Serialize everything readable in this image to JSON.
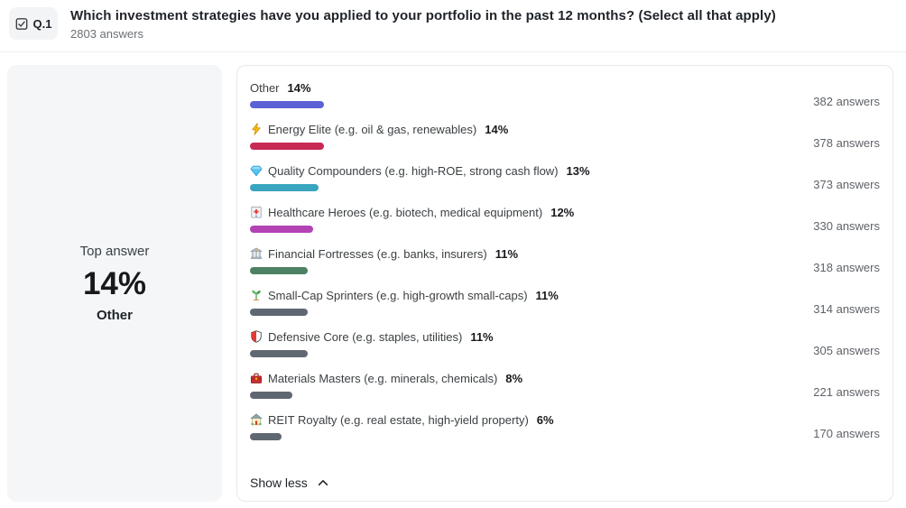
{
  "header": {
    "badge": {
      "icon": "checkbox-checked-icon",
      "label": "Q.1"
    },
    "title": "Which investment strategies have you applied to your portfolio in the past 12 months? (Select all that apply)",
    "subtitle": "2803 answers"
  },
  "summary": {
    "label": "Top answer",
    "value": "14%",
    "answer": "Other"
  },
  "results": {
    "rows": [
      {
        "icon": null,
        "label": "Other",
        "percent": "14%",
        "percent_value": 14,
        "count": "382 answers",
        "bar_color": "#5c61d6"
      },
      {
        "icon": "lightning-icon",
        "label": "Energy Elite (e.g. oil & gas, renewables)",
        "percent": "14%",
        "percent_value": 14,
        "count": "378 answers",
        "bar_color": "#c72a55"
      },
      {
        "icon": "gem-icon",
        "label": "Quality Compounders (e.g. high-ROE, strong cash flow)",
        "percent": "13%",
        "percent_value": 13,
        "count": "373 answers",
        "bar_color": "#39a5bf"
      },
      {
        "icon": "hospital-icon",
        "label": "Healthcare Heroes (e.g. biotech, medical equipment)",
        "percent": "12%",
        "percent_value": 12,
        "count": "330 answers",
        "bar_color": "#b343b5"
      },
      {
        "icon": "bank-icon",
        "label": "Financial Fortresses (e.g. banks, insurers)",
        "percent": "11%",
        "percent_value": 11,
        "count": "318 answers",
        "bar_color": "#4c8163"
      },
      {
        "icon": "seedling-icon",
        "label": "Small-Cap Sprinters (e.g. high-growth small-caps)",
        "percent": "11%",
        "percent_value": 11,
        "count": "314 answers",
        "bar_color": "#5f6772"
      },
      {
        "icon": "shield-icon",
        "label": "Defensive Core (e.g. staples, utilities)",
        "percent": "11%",
        "percent_value": 11,
        "count": "305 answers",
        "bar_color": "#5f6772"
      },
      {
        "icon": "toolbox-icon",
        "label": "Materials Masters (e.g. minerals, chemicals)",
        "percent": "8%",
        "percent_value": 8,
        "count": "221 answers",
        "bar_color": "#5f6772"
      },
      {
        "icon": "house-icon",
        "label": "REIT Royalty (e.g. real estate, high-yield property)",
        "percent": "6%",
        "percent_value": 6,
        "count": "170 answers",
        "bar_color": "#5f6772"
      }
    ],
    "show_less_label": "Show less",
    "show_less_icon": "chevron-up-icon"
  },
  "chart_data": {
    "type": "bar",
    "title": "Which investment strategies have you applied to your portfolio in the past 12 months? (Select all that apply)",
    "total_answers": 2803,
    "categories": [
      "Other",
      "Energy Elite (e.g. oil & gas, renewables)",
      "Quality Compounders (e.g. high-ROE, strong cash flow)",
      "Healthcare Heroes (e.g. biotech, medical equipment)",
      "Financial Fortresses (e.g. banks, insurers)",
      "Small-Cap Sprinters (e.g. high-growth small-caps)",
      "Defensive Core (e.g. staples, utilities)",
      "Materials Masters (e.g. minerals, chemicals)",
      "REIT Royalty (e.g. real estate, high-yield property)"
    ],
    "series": [
      {
        "name": "percent",
        "values": [
          14,
          14,
          13,
          12,
          11,
          11,
          11,
          8,
          6
        ]
      },
      {
        "name": "answers",
        "values": [
          382,
          378,
          373,
          330,
          318,
          314,
          305,
          221,
          170
        ]
      }
    ],
    "xlabel": "",
    "ylabel": "",
    "orientation": "horizontal",
    "grid": false,
    "legend": false
  }
}
